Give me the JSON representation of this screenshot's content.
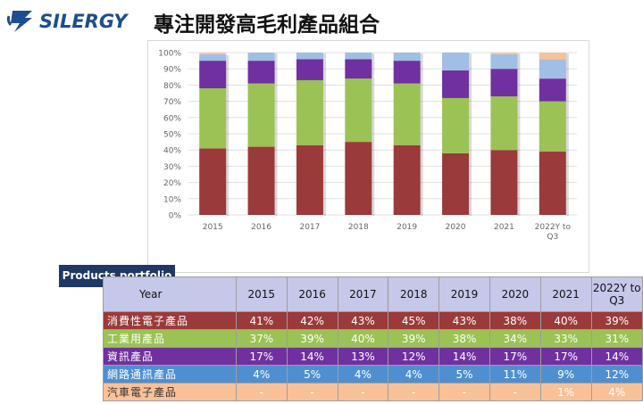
{
  "brand": {
    "logo_text": "SILERGY",
    "logo_color": "#1d4e8f"
  },
  "page": {
    "title": "專注開發高毛利產品組合"
  },
  "portfolio_label": "Products portfolio",
  "table": {
    "year_header": "Year",
    "years": [
      "2015",
      "2016",
      "2017",
      "2018",
      "2019",
      "2020",
      "2021",
      "2022Y to Q3"
    ],
    "rows": [
      {
        "label": "消費性電子產品",
        "bg": "#9b3a3a",
        "fg": "#ffffff",
        "cells": [
          "41%",
          "42%",
          "43%",
          "45%",
          "43%",
          "38%",
          "40%",
          "39%"
        ]
      },
      {
        "label": "工業用產品",
        "bg": "#9bc254",
        "fg": "#ffffff",
        "cells": [
          "37%",
          "39%",
          "40%",
          "39%",
          "38%",
          "34%",
          "33%",
          "31%"
        ]
      },
      {
        "label": "資訊產品",
        "bg": "#7030a0",
        "fg": "#ffffff",
        "cells": [
          "17%",
          "14%",
          "13%",
          "12%",
          "14%",
          "17%",
          "17%",
          "14%"
        ]
      },
      {
        "label": "網路通訊產品",
        "bg": "#4f8fd0",
        "fg": "#ffffff",
        "cells": [
          "4%",
          "5%",
          "4%",
          "4%",
          "5%",
          "11%",
          "9%",
          "12%"
        ]
      },
      {
        "label": "汽車電子產品",
        "bg": "#f9c197",
        "fg": "#ffffff",
        "cells": [
          "-",
          "-",
          "-",
          "-",
          "-",
          "-",
          "1%",
          "4%"
        ]
      }
    ]
  },
  "chart_data": {
    "type": "bar",
    "stacked": true,
    "categories": [
      "2015",
      "2016",
      "2017",
      "2018",
      "2019",
      "2020",
      "2021",
      "2022Y to Q3"
    ],
    "ylim": [
      0,
      100
    ],
    "yticks": [
      "0%",
      "10%",
      "20%",
      "30%",
      "40%",
      "50%",
      "60%",
      "70%",
      "80%",
      "90%",
      "100%"
    ],
    "grid": true,
    "legend_position": "bottom",
    "series": [
      {
        "name": "消費性電子產品",
        "color": "#9b3a3a",
        "values": [
          41,
          42,
          43,
          45,
          43,
          38,
          40,
          39
        ]
      },
      {
        "name": "工業用產品",
        "color": "#9bc254",
        "values": [
          37,
          39,
          40,
          39,
          38,
          34,
          33,
          31
        ]
      },
      {
        "name": "資訊產品",
        "color": "#7030a0",
        "values": [
          17,
          14,
          13,
          12,
          14,
          17,
          17,
          14
        ]
      },
      {
        "name": "網路通訊產品",
        "color": "#9fbfe4",
        "values": [
          4,
          5,
          4,
          4,
          5,
          11,
          9,
          12
        ]
      },
      {
        "name": "汽車電子產品",
        "color": "#f9c197",
        "values": [
          0,
          0,
          0,
          0,
          0,
          0,
          1,
          4
        ]
      }
    ]
  }
}
